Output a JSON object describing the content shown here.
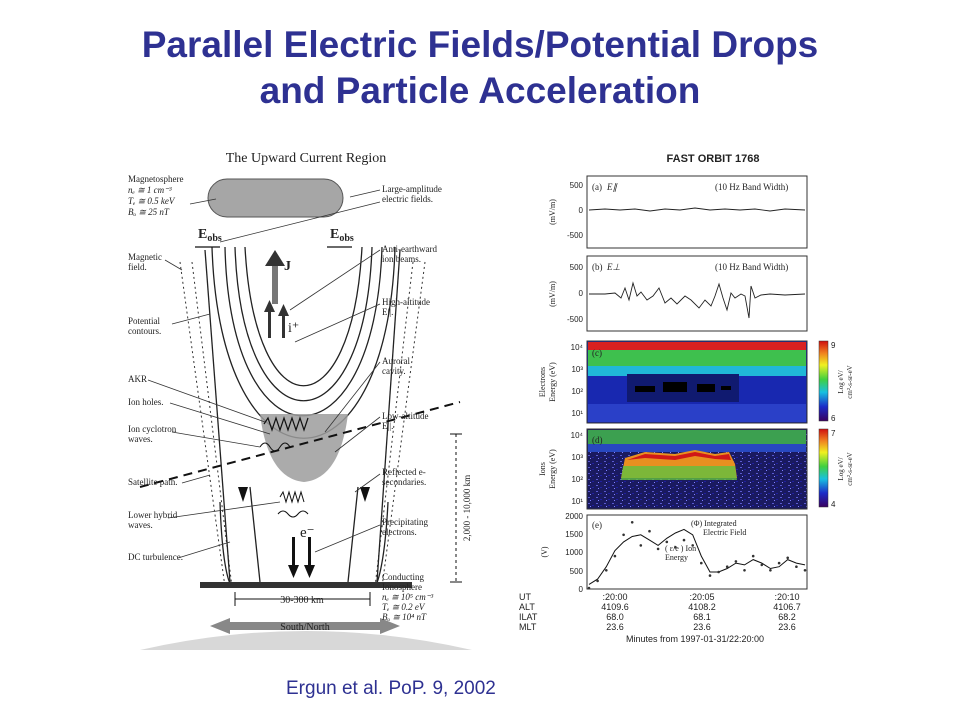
{
  "slide": {
    "title_line1": "Parallel Electric Fields/Potential Drops",
    "title_line2": "and Particle Acceleration",
    "citation": "Ergun et al. PoP. 9, 2002",
    "title_color": "#2e3192"
  },
  "left_diagram": {
    "title": "The Upward Current Region",
    "magnetosphere": [
      "Magnetosphere",
      "nₑ ≅ 1 cm⁻³",
      "Tₑ ≅ 0.5 keV",
      "Bₒ ≅ 25 nT"
    ],
    "eobs": "E",
    "eobs_sub": "obs",
    "j_label": "J",
    "i_label": "i⁺",
    "e_label": "e⁻",
    "left_labels": {
      "magnetic_field": [
        "Magnetic",
        "field."
      ],
      "potential": [
        "Potential",
        "contours."
      ],
      "akr": "AKR",
      "ion_holes": "Ion holes.",
      "ion_cyclotron": [
        "Ion cyclotron",
        "waves."
      ],
      "satellite_path": "Satellite path.",
      "lower_hybrid": [
        "Lower hybrid",
        "waves."
      ],
      "dc_turbulence": "DC turbulence."
    },
    "right_labels": {
      "large_amplitude": [
        "Large-amplitude",
        "electric fields."
      ],
      "anti_earthward": [
        "Anti-earthward",
        "ion beams."
      ],
      "high_altitude": [
        "High-altitude",
        "E||."
      ],
      "auroral_cavity": [
        "Auroral",
        "cavity."
      ],
      "low_altitude": [
        "Low-altitude",
        "E||."
      ],
      "reflected": [
        "Reflected e-",
        "secondaries."
      ],
      "precipitating": [
        "Precipitating",
        "electrons."
      ],
      "conducting": [
        "Conducting",
        "Ionosphere",
        "nₑ ≅ 10⁵ cm⁻³",
        "Tₑ ≅ 0.2 eV",
        "Bₒ ≅ 10⁴ nT"
      ]
    },
    "altitude_range": "2,000 - 10,000 km",
    "width_range": "30-300 km",
    "south_north": "South/North"
  },
  "right_figure": {
    "title": "FAST ORBIT 1768",
    "panel_a": {
      "tag": "(a)",
      "quantity": "E∥",
      "note": "(10 Hz Band Width)",
      "ylabel": "(mV/m)",
      "ticks": [
        "500",
        "0",
        "-500"
      ]
    },
    "panel_b": {
      "tag": "(b)",
      "quantity": "E⊥",
      "note": "(10 Hz Band Width)",
      "ylabel": "(mV/m)",
      "ticks": [
        "500",
        "0",
        "-500"
      ]
    },
    "panel_c": {
      "tag": "(c)",
      "ylabel1": "Electrons",
      "ylabel2": "Energy (eV)",
      "ticks": [
        "10⁴",
        "10³",
        "10²",
        "10¹"
      ],
      "cbar_ticks": [
        "9",
        "6"
      ],
      "cbar_label1": "Log eV/",
      "cbar_label2": "cm²-s-sr-eV"
    },
    "panel_d": {
      "tag": "(d)",
      "ylabel1": "Ions",
      "ylabel2": "Energy (eV)",
      "ticks": [
        "10⁴",
        "10³",
        "10²",
        "10¹"
      ],
      "cbar_ticks": [
        "7",
        "4"
      ],
      "cbar_label1": "Log eV/",
      "cbar_label2": "cm²-s-sr-eV"
    },
    "panel_e": {
      "tag": "(e)",
      "ylabel": "(V)",
      "ticks": [
        "2000",
        "1500",
        "1000",
        "500",
        "0"
      ],
      "phi_label": "(Φ) Integrated",
      "phi_label2": "Electric Field",
      "ion_label": "( ε/e ) Ion",
      "ion_label2": "Energy"
    },
    "footer": {
      "row_labels": [
        "UT",
        "ALT",
        "ILAT",
        "MLT"
      ],
      "columns": [
        [
          ":20:00",
          "4109.6",
          "68.0",
          "23.6"
        ],
        [
          ":20:05",
          "4108.2",
          "68.1",
          "23.6"
        ],
        [
          ":20:10",
          "4106.7",
          "68.2",
          "23.6"
        ]
      ],
      "minutes_from": "Minutes from 1997-01-31/22:20:00"
    }
  },
  "chart_data": {
    "type": "line",
    "title": "FAST ORBIT 1768",
    "xlabel": "Minutes from 1997-01-31/22:20:00",
    "ylabel": "(V)",
    "ylim": [
      0,
      2000
    ],
    "x": [
      0.0,
      0.5,
      1.0,
      1.5,
      2.0,
      2.5,
      3.0,
      3.5,
      4.0,
      4.5,
      5.0,
      5.5,
      6.0,
      6.5,
      7.0,
      7.5,
      8.0,
      8.5,
      9.0,
      9.5,
      10.0,
      10.5,
      11.0,
      11.5,
      12.0,
      12.5
    ],
    "series": [
      {
        "name": "(Φ) Integrated Electric Field",
        "values": [
          100,
          250,
          600,
          1050,
          1300,
          1450,
          1500,
          1350,
          1200,
          1400,
          1550,
          1650,
          1500,
          900,
          450,
          450,
          550,
          700,
          650,
          800,
          700,
          550,
          600,
          800,
          700,
          650
        ]
      },
      {
        "name": "( ε/e ) Ion Energy",
        "values": [
          0,
          200,
          500,
          900,
          1500,
          1850,
          1200,
          1600,
          1100,
          1300,
          1150,
          1350,
          1200,
          700,
          350,
          450,
          600,
          750,
          500,
          900,
          650,
          500,
          700,
          850,
          600,
          500
        ]
      }
    ]
  }
}
